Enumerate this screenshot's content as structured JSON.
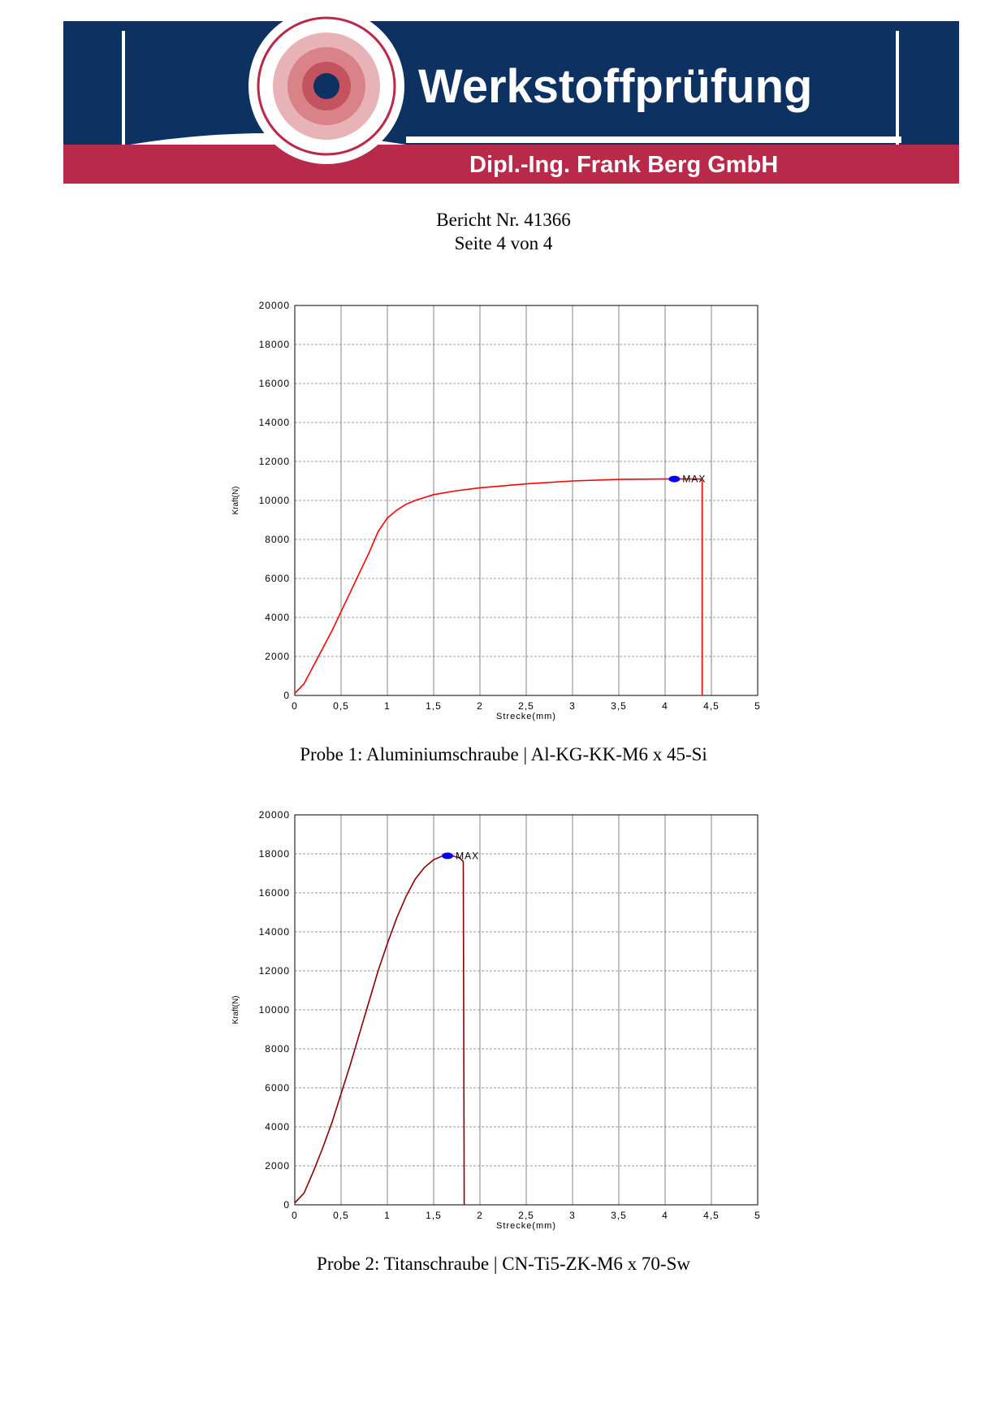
{
  "header": {
    "title": "Werkstoffprüfung",
    "subtitle": "Dipl.-Ing. Frank Berg GmbH"
  },
  "report": {
    "number": "Bericht Nr. 41366",
    "page": "Seite 4 von 4"
  },
  "chart_data": [
    {
      "type": "line",
      "caption": "Probe 1: Aluminiumschraube | Al-KG-KK-M6 x 45-Si",
      "xlabel": "Strecke(mm)",
      "ylabel": "Kraft(N)",
      "color": "#ff0000",
      "grid": true,
      "x": [
        0,
        0.1,
        0.2,
        0.3,
        0.4,
        0.5,
        0.6,
        0.7,
        0.8,
        0.9,
        1.0,
        1.1,
        1.2,
        1.3,
        1.5,
        1.75,
        2,
        2.5,
        3,
        3.5,
        4,
        4.1,
        4.38,
        4.4,
        4.4
      ],
      "values": [
        100,
        600,
        1500,
        2400,
        3300,
        4300,
        5300,
        6300,
        7300,
        8400,
        9100,
        9500,
        9800,
        10000,
        10300,
        10500,
        10650,
        10850,
        11000,
        11080,
        11100,
        11100,
        11100,
        11000,
        0
      ],
      "max_point": {
        "x": 4.1,
        "y": 11100,
        "label": "MAX"
      },
      "xlim": [
        0,
        5
      ],
      "ylim": [
        0,
        20000
      ],
      "xticks": [
        0,
        {
          "value": 0.5,
          "label": "0,5"
        },
        1,
        {
          "value": 1.5,
          "label": "1,5"
        },
        2,
        {
          "value": 2.5,
          "label": "2,5"
        },
        3,
        {
          "value": 3.5,
          "label": "3,5"
        },
        4,
        {
          "value": 4.5,
          "label": "4,5"
        },
        5
      ],
      "yticks": [
        0,
        2000,
        4000,
        6000,
        8000,
        10000,
        12000,
        14000,
        16000,
        18000,
        20000
      ]
    },
    {
      "type": "line",
      "caption": "Probe 2: Titanschraube | CN-Ti5-ZK-M6 x 70-Sw",
      "xlabel": "Strecke(mm)",
      "ylabel": "Kraft(N)",
      "color": "#8b0000",
      "grid": true,
      "x": [
        0,
        0.1,
        0.2,
        0.3,
        0.4,
        0.5,
        0.6,
        0.7,
        0.8,
        0.9,
        1.0,
        1.1,
        1.2,
        1.3,
        1.4,
        1.5,
        1.6,
        1.7,
        1.78,
        1.82,
        1.83
      ],
      "values": [
        100,
        600,
        1700,
        2900,
        4200,
        5700,
        7200,
        8800,
        10400,
        12000,
        13400,
        14700,
        15800,
        16700,
        17300,
        17700,
        17900,
        17900,
        17800,
        17600,
        0
      ],
      "max_point": {
        "x": 1.65,
        "y": 17900,
        "label": "MAX"
      },
      "xlim": [
        0,
        5
      ],
      "ylim": [
        0,
        20000
      ],
      "xticks": [
        0,
        {
          "value": 0.5,
          "label": "0,5"
        },
        1,
        {
          "value": 1.5,
          "label": "1,5"
        },
        2,
        {
          "value": 2.5,
          "label": "2,5"
        },
        3,
        {
          "value": 3.5,
          "label": "3,5"
        },
        4,
        {
          "value": 4.5,
          "label": "4,5"
        },
        5
      ],
      "yticks": [
        0,
        2000,
        4000,
        6000,
        8000,
        10000,
        12000,
        14000,
        16000,
        18000,
        20000
      ]
    }
  ]
}
